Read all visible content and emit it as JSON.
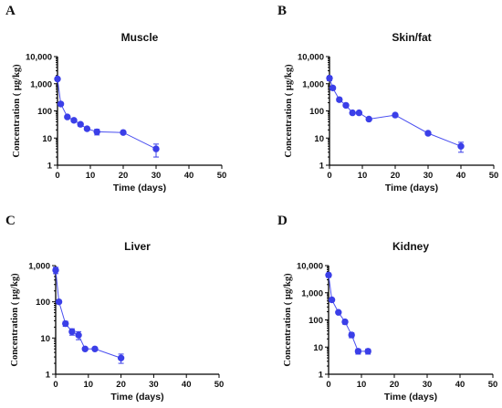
{
  "chart_data": [
    {
      "panel": "A",
      "type": "line",
      "title": "Muscle",
      "xlabel": "Time (days)",
      "ylabel": "Concentration ( µg/kg)",
      "y_scale": "log",
      "xlim": [
        0,
        50
      ],
      "ylim": [
        1,
        10000
      ],
      "x_ticks": [
        "0",
        "10",
        "20",
        "30",
        "40",
        "50"
      ],
      "y_ticks": [
        "1",
        "10",
        "100",
        "1,000",
        "10,000"
      ],
      "series": [
        {
          "color": "#3b3fe8",
          "x": [
            0,
            1,
            3,
            5,
            7,
            9,
            12,
            20,
            30
          ],
          "y": [
            1500,
            180,
            60,
            45,
            32,
            22,
            17,
            16,
            4
          ],
          "err": [
            200,
            20,
            8,
            6,
            5,
            3,
            4,
            2,
            2
          ]
        }
      ]
    },
    {
      "panel": "B",
      "type": "line",
      "title": "Skin/fat",
      "xlabel": "Time (days)",
      "ylabel": "Concentration ( µg/kg)",
      "y_scale": "log",
      "xlim": [
        0,
        50
      ],
      "ylim": [
        1,
        10000
      ],
      "x_ticks": [
        "0",
        "10",
        "20",
        "30",
        "40",
        "50"
      ],
      "y_ticks": [
        "1",
        "10",
        "100",
        "1,000",
        "10,000"
      ],
      "series": [
        {
          "color": "#3b3fe8",
          "x": [
            0,
            1,
            3,
            5,
            7,
            9,
            12,
            20,
            30,
            40
          ],
          "y": [
            1600,
            700,
            260,
            160,
            85,
            85,
            50,
            70,
            15,
            5
          ],
          "err": [
            300,
            100,
            40,
            20,
            10,
            10,
            6,
            8,
            2,
            2
          ]
        }
      ]
    },
    {
      "panel": "C",
      "type": "line",
      "title": "Liver",
      "xlabel": "Time (days)",
      "ylabel": "Concentration ( µg/kg)",
      "y_scale": "log",
      "xlim": [
        0,
        50
      ],
      "ylim": [
        1,
        1000
      ],
      "x_ticks": [
        "0",
        "10",
        "20",
        "30",
        "40",
        "50"
      ],
      "y_ticks": [
        "1",
        "10",
        "100",
        "1,000"
      ],
      "series": [
        {
          "color": "#3b3fe8",
          "x": [
            0,
            1,
            3,
            5,
            7,
            9,
            12,
            20
          ],
          "y": [
            750,
            100,
            25,
            15,
            12,
            5,
            5,
            2.8
          ],
          "err": [
            150,
            10,
            4,
            3,
            3,
            0.5,
            0.5,
            0.8
          ]
        }
      ]
    },
    {
      "panel": "D",
      "type": "line",
      "title": "Kidney",
      "xlabel": "Time (days)",
      "ylabel": "Concentration ( µg/kg)",
      "y_scale": "log",
      "xlim": [
        0,
        50
      ],
      "ylim": [
        1,
        10000
      ],
      "x_ticks": [
        "0",
        "10",
        "20",
        "30",
        "40",
        "50"
      ],
      "y_ticks": [
        "1",
        "10",
        "100",
        "1,000",
        "10,000"
      ],
      "series": [
        {
          "color": "#3b3fe8",
          "x": [
            0,
            1,
            3,
            5,
            7,
            9,
            12
          ],
          "y": [
            4500,
            550,
            190,
            85,
            28,
            7,
            7
          ],
          "err": [
            800,
            60,
            20,
            15,
            6,
            1.5,
            1.5
          ]
        }
      ]
    }
  ]
}
